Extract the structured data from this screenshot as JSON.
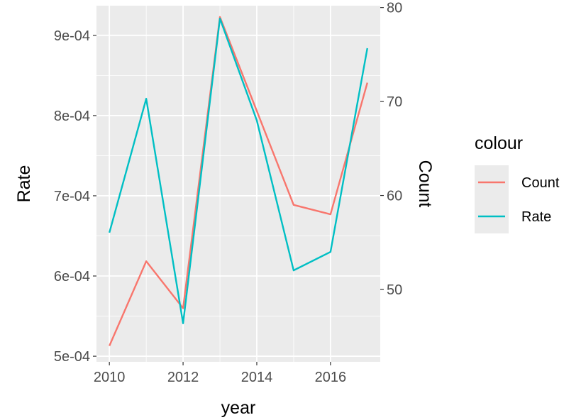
{
  "chart_data": {
    "type": "line",
    "xlabel": "year",
    "ylabel_left": "Rate",
    "ylabel_right": "Count",
    "x": [
      2010,
      2011,
      2012,
      2013,
      2014,
      2015,
      2016,
      2017
    ],
    "xlim": [
      2009.65,
      2017.35
    ],
    "xticks": [
      2010,
      2012,
      2014,
      2016
    ],
    "xtick_labels": [
      "2010",
      "2012",
      "2014",
      "2016"
    ],
    "ylim_left": [
      0.000493,
      0.000937
    ],
    "yticks_left": [
      0.0005,
      0.0006,
      0.0007,
      0.0008,
      0.0009
    ],
    "ytick_labels_left": [
      "5e-04",
      "6e-04",
      "7e-04",
      "8e-04",
      "9e-04"
    ],
    "ylim_right": [
      42.3,
      80.2
    ],
    "yticks_right": [
      50,
      60,
      70,
      80
    ],
    "ytick_labels_right": [
      "50",
      "60",
      "70",
      "80"
    ],
    "grid": true,
    "legend": {
      "title": "colour",
      "position": "right"
    },
    "series": [
      {
        "name": "Count",
        "axis": "right",
        "color": "#F8766D",
        "values": [
          44,
          53,
          48,
          79,
          69,
          59,
          58,
          72
        ]
      },
      {
        "name": "Rate",
        "axis": "left",
        "color": "#00BFC4",
        "values": [
          0.000654,
          0.000821,
          0.000541,
          0.000921,
          0.000794,
          0.000607,
          0.00063,
          0.000884
        ]
      }
    ]
  }
}
